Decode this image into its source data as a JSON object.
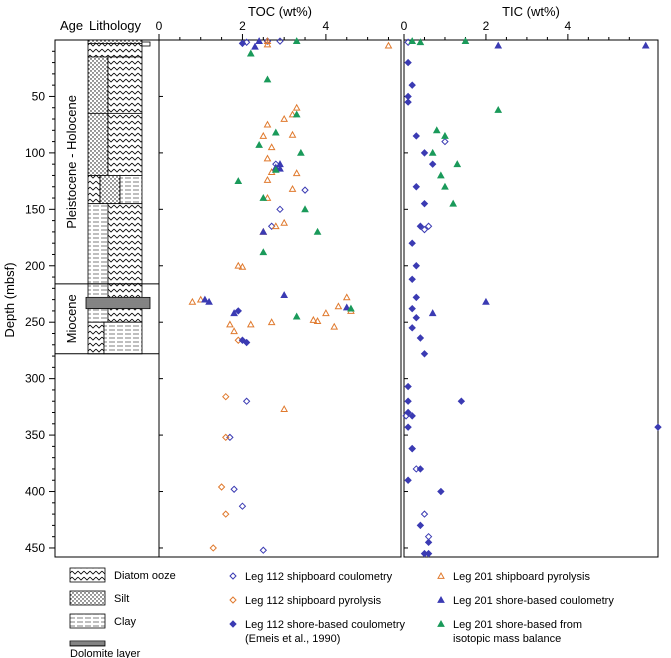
{
  "header": {
    "age": "Age",
    "lithology": "Lithology"
  },
  "axis": {
    "ylabel": "Depth (mbsf)",
    "yticks": [
      50,
      100,
      150,
      200,
      250,
      300,
      350,
      400,
      450
    ],
    "ylim": [
      0,
      458
    ]
  },
  "ages": [
    {
      "label": "Pleistocene - Holocene",
      "top": 0,
      "bottom": 216
    },
    {
      "label": "Miocene",
      "top": 216,
      "bottom": 278
    }
  ],
  "lithology_units": [
    {
      "top": 0,
      "bottom": 3,
      "type": "silt"
    },
    {
      "top": 3,
      "bottom": 15,
      "type": "diatom"
    },
    {
      "top": 15,
      "bottom": 65,
      "type": "silt-diatom"
    },
    {
      "top": 65,
      "bottom": 120,
      "type": "silt-diatom"
    },
    {
      "top": 120,
      "bottom": 145,
      "type": "mixed"
    },
    {
      "top": 145,
      "bottom": 216,
      "type": "clay-diatom"
    },
    {
      "top": 216,
      "bottom": 228,
      "type": "clay-diatom"
    },
    {
      "top": 228,
      "bottom": 238,
      "type": "dolomite"
    },
    {
      "top": 238,
      "bottom": 250,
      "type": "clay-diatom"
    },
    {
      "top": 250,
      "bottom": 278,
      "type": "diatom-clay"
    }
  ],
  "legend_lithology": [
    {
      "label": "Diatom ooze",
      "pattern": "diatom"
    },
    {
      "label": "Silt",
      "pattern": "silt"
    },
    {
      "label": "Clay",
      "pattern": "clay"
    },
    {
      "label": "Dolomite layer",
      "pattern": "dolomite"
    }
  ],
  "legend_series": [
    {
      "label": "Leg 112 shipboard coulometry",
      "marker": "diamond-open",
      "color": "#3b3bb3"
    },
    {
      "label": "Leg 112 shipboard pyrolysis",
      "marker": "diamond-open",
      "color": "#e07a2e"
    },
    {
      "label": "Leg 112 shore-based coulometry",
      "label2": "(Emeis et al., 1990)",
      "marker": "diamond",
      "color": "#3b3bb3"
    },
    {
      "label": "Leg 201 shipboard pyrolysis",
      "marker": "triangle-open",
      "color": "#e07a2e"
    },
    {
      "label": "Leg 201 shore-based coulometry",
      "marker": "triangle",
      "color": "#3b3bb3"
    },
    {
      "label": "Leg 201 shore-based from",
      "label2": "isotopic mass balance",
      "marker": "triangle",
      "color": "#1a9a5a"
    }
  ],
  "chart_data": [
    {
      "type": "scatter",
      "title": "TOC (wt%)",
      "xlim": [
        0,
        5.8
      ],
      "xticks": [
        0,
        2,
        4
      ],
      "series": [
        {
          "name": "Leg 112 shipboard coulometry",
          "points": [
            [
              2.6,
              1
            ],
            [
              2.9,
              1
            ],
            [
              2.1,
              2
            ],
            [
              2.8,
              110
            ],
            [
              3.5,
              133
            ],
            [
              2.9,
              150
            ],
            [
              2.7,
              165
            ],
            [
              2.1,
              320
            ],
            [
              1.7,
              352
            ],
            [
              1.8,
              398
            ],
            [
              2.0,
              413
            ],
            [
              2.5,
              452
            ]
          ]
        },
        {
          "name": "Leg 112 shipboard pyrolysis",
          "points": [
            [
              1.6,
              316
            ],
            [
              1.6,
              352
            ],
            [
              1.5,
              396
            ],
            [
              1.6,
              420
            ],
            [
              1.3,
              450
            ],
            [
              1.9,
              266
            ]
          ]
        },
        {
          "name": "Leg 112 shore-based coulometry",
          "points": [
            [
              2.0,
              3
            ],
            [
              1.9,
              240
            ],
            [
              2.0,
              266
            ],
            [
              2.1,
              268
            ]
          ]
        },
        {
          "name": "Leg 201 shipboard pyrolysis",
          "points": [
            [
              2.6,
              1
            ],
            [
              2.6,
              4
            ],
            [
              5.5,
              5
            ],
            [
              3.3,
              60
            ],
            [
              3.2,
              66
            ],
            [
              3.0,
              70
            ],
            [
              2.6,
              75
            ],
            [
              3.2,
              84
            ],
            [
              2.5,
              85
            ],
            [
              2.7,
              95
            ],
            [
              2.6,
              105
            ],
            [
              2.7,
              117
            ],
            [
              3.3,
              118
            ],
            [
              2.6,
              124
            ],
            [
              3.2,
              132
            ],
            [
              2.6,
              140
            ],
            [
              3.0,
              162
            ],
            [
              2.5,
              170
            ],
            [
              2.8,
              165
            ],
            [
              1.9,
              200
            ],
            [
              2.0,
              201
            ],
            [
              1.0,
              230
            ],
            [
              0.8,
              232
            ],
            [
              4.5,
              228
            ],
            [
              4.3,
              236
            ],
            [
              4.6,
              240
            ],
            [
              4.0,
              242
            ],
            [
              3.8,
              249
            ],
            [
              4.2,
              254
            ],
            [
              2.2,
              252
            ],
            [
              1.8,
              258
            ],
            [
              3.7,
              248
            ],
            [
              1.7,
              252
            ],
            [
              2.7,
              250
            ],
            [
              3.0,
              327
            ]
          ]
        },
        {
          "name": "Leg 201 shore-based coulometry",
          "points": [
            [
              2.4,
              1
            ],
            [
              2.3,
              6
            ],
            [
              2.9,
              110
            ],
            [
              2.9,
              114
            ],
            [
              2.8,
              113
            ],
            [
              1.1,
              230
            ],
            [
              1.2,
              232
            ],
            [
              3.0,
              226
            ],
            [
              4.5,
              237
            ],
            [
              1.8,
              242
            ],
            [
              2.5,
              170
            ]
          ]
        },
        {
          "name": "Leg 201 shore-based from isotopic mass balance",
          "points": [
            [
              3.3,
              1
            ],
            [
              2.2,
              12
            ],
            [
              2.6,
              35
            ],
            [
              3.3,
              66
            ],
            [
              2.8,
              82
            ],
            [
              2.4,
              93
            ],
            [
              3.4,
              100
            ],
            [
              2.8,
              115
            ],
            [
              1.9,
              125
            ],
            [
              2.5,
              140
            ],
            [
              3.5,
              150
            ],
            [
              3.8,
              170
            ],
            [
              2.5,
              188
            ],
            [
              4.6,
              238
            ],
            [
              3.3,
              245
            ]
          ]
        }
      ]
    },
    {
      "type": "scatter",
      "title": "TIC (wt%)",
      "xlim": [
        0,
        6.2
      ],
      "xticks": [
        0,
        2,
        4
      ],
      "series": [
        {
          "name": "Leg 112 shipboard coulometry",
          "points": [
            [
              0.1,
              2
            ],
            [
              0.05,
              333
            ],
            [
              0.2,
              362
            ],
            [
              0.3,
              380
            ],
            [
              0.5,
              420
            ],
            [
              0.6,
              440
            ],
            [
              1.0,
              90
            ],
            [
              0.6,
              165
            ],
            [
              0.5,
              168
            ]
          ]
        },
        {
          "name": "Leg 112 shipboard pyrolysis",
          "points": []
        },
        {
          "name": "Leg 112 shore-based coulometry",
          "points": [
            [
              0.1,
              20
            ],
            [
              0.2,
              40
            ],
            [
              0.1,
              50
            ],
            [
              0.1,
              55
            ],
            [
              0.3,
              85
            ],
            [
              0.5,
              100
            ],
            [
              0.7,
              110
            ],
            [
              0.3,
              130
            ],
            [
              0.5,
              145
            ],
            [
              0.4,
              165
            ],
            [
              0.2,
              180
            ],
            [
              0.3,
              200
            ],
            [
              0.2,
              212
            ],
            [
              0.3,
              228
            ],
            [
              0.2,
              238
            ],
            [
              0.3,
              246
            ],
            [
              0.2,
              255
            ],
            [
              0.4,
              264
            ],
            [
              0.5,
              278
            ],
            [
              0.1,
              307
            ],
            [
              0.1,
              320
            ],
            [
              1.4,
              320
            ],
            [
              0.1,
              330
            ],
            [
              0.2,
              333
            ],
            [
              0.1,
              343
            ],
            [
              6.2,
              343
            ],
            [
              0.2,
              362
            ],
            [
              0.4,
              380
            ],
            [
              0.1,
              390
            ],
            [
              0.9,
              400
            ],
            [
              0.4,
              430
            ],
            [
              0.6,
              445
            ],
            [
              0.5,
              455
            ],
            [
              0.6,
              455
            ]
          ]
        },
        {
          "name": "Leg 201 shipboard pyrolysis",
          "points": []
        },
        {
          "name": "Leg 201 shore-based coulometry",
          "points": [
            [
              2.3,
              5
            ],
            [
              5.9,
              5
            ],
            [
              2.0,
              232
            ],
            [
              0.7,
              242
            ]
          ]
        },
        {
          "name": "Leg 201 shore-based from isotopic mass balance",
          "points": [
            [
              0.2,
              1
            ],
            [
              1.5,
              1
            ],
            [
              0.4,
              2
            ],
            [
              2.3,
              62
            ],
            [
              0.8,
              80
            ],
            [
              1.0,
              85
            ],
            [
              0.7,
              100
            ],
            [
              1.3,
              110
            ],
            [
              0.9,
              120
            ],
            [
              1.0,
              130
            ],
            [
              1.2,
              145
            ]
          ]
        }
      ]
    }
  ]
}
